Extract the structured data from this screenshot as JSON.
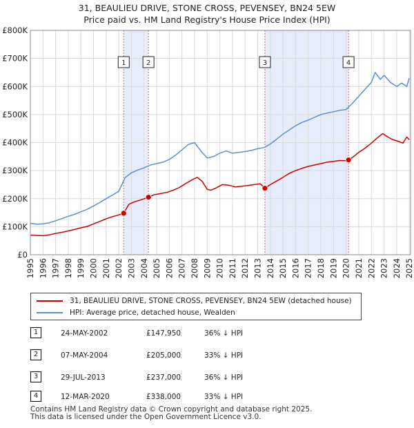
{
  "chart_data": {
    "type": "line",
    "title": "31, BEAULIEU DRIVE, STONE CROSS, PEVENSEY, BN24 5EW",
    "subtitle": "Price paid vs. HM Land Registry's House Price Index (HPI)",
    "xlabel": "",
    "ylabel": "",
    "xlim": [
      1995,
      2025.1
    ],
    "ylim": [
      0,
      800000
    ],
    "x_ticks": [
      1995,
      1996,
      1997,
      1998,
      1999,
      2000,
      2001,
      2002,
      2003,
      2004,
      2005,
      2006,
      2007,
      2008,
      2009,
      2010,
      2011,
      2012,
      2013,
      2014,
      2015,
      2016,
      2017,
      2018,
      2019,
      2020,
      2021,
      2022,
      2023,
      2024,
      2025
    ],
    "y_ticks": [
      {
        "value": 0,
        "label": "£0"
      },
      {
        "value": 100000,
        "label": "£100K"
      },
      {
        "value": 200000,
        "label": "£200K"
      },
      {
        "value": 300000,
        "label": "£300K"
      },
      {
        "value": 400000,
        "label": "£400K"
      },
      {
        "value": 500000,
        "label": "£500K"
      },
      {
        "value": 600000,
        "label": "£600K"
      },
      {
        "value": 700000,
        "label": "£700K"
      },
      {
        "value": 800000,
        "label": "£800K"
      }
    ],
    "grid": true,
    "shaded_periods": [
      [
        2002.39,
        2004.35
      ],
      [
        2013.57,
        2020.19
      ]
    ],
    "series": [
      {
        "name": "31, BEAULIEU DRIVE, STONE CROSS, PEVENSEY, BN24 5EW (detached house)",
        "color": "#cc0000",
        "x": [
          1995,
          1995.5,
          1996,
          1996.5,
          1997,
          1997.5,
          1998,
          1998.5,
          1999,
          1999.5,
          2000,
          2000.5,
          2001,
          2001.5,
          2002,
          2002.39,
          2002.39,
          2002.8,
          2003.2,
          2003.7,
          2004.1,
          2004.35,
          2004.35,
          2004.8,
          2005.3,
          2005.8,
          2006.3,
          2006.8,
          2007.3,
          2007.8,
          2008.2,
          2008.6,
          2009.0,
          2009.3,
          2009.7,
          2010.2,
          2010.7,
          2011.2,
          2011.7,
          2012.2,
          2012.7,
          2013.2,
          2013.57,
          2013.57,
          2014.0,
          2014.5,
          2015.0,
          2015.5,
          2016.0,
          2016.5,
          2017.0,
          2017.5,
          2018.0,
          2018.5,
          2019.0,
          2019.5,
          2020.0,
          2020.19,
          2020.19,
          2020.6,
          2021.0,
          2021.5,
          2022.0,
          2022.5,
          2022.9,
          2023.3,
          2023.7,
          2024.1,
          2024.5,
          2024.8,
          2025.0
        ],
        "y": [
          70000,
          69000,
          68000,
          71000,
          76000,
          80000,
          85000,
          90000,
          96000,
          101000,
          110000,
          119000,
          128000,
          136000,
          142000,
          147950,
          147950,
          180000,
          188000,
          195000,
          201000,
          205000,
          205000,
          214000,
          218000,
          222000,
          230000,
          240000,
          254000,
          267000,
          276000,
          262000,
          233000,
          230000,
          238000,
          250000,
          248000,
          242000,
          244000,
          247000,
          250000,
          253000,
          237000,
          237000,
          250000,
          263000,
          276000,
          290000,
          300000,
          308000,
          315000,
          320000,
          325000,
          330000,
          333000,
          336000,
          335000,
          338000,
          338000,
          350000,
          365000,
          380000,
          398000,
          418000,
          432000,
          420000,
          410000,
          405000,
          398000,
          420000,
          410000
        ]
      },
      {
        "name": "HPI: Average price, detached house, Wealden",
        "color": "#5b8fd1",
        "x": [
          1995,
          1995.5,
          1996,
          1996.5,
          1997,
          1997.5,
          1998,
          1998.5,
          1999,
          1999.5,
          2000,
          2000.5,
          2001,
          2001.5,
          2002,
          2002.5,
          2003,
          2003.5,
          2004,
          2004.5,
          2005,
          2005.5,
          2006,
          2006.5,
          2007,
          2007.5,
          2008,
          2008.5,
          2009,
          2009.5,
          2010,
          2010.5,
          2011,
          2011.5,
          2012,
          2012.5,
          2013,
          2013.5,
          2014,
          2014.5,
          2015,
          2015.5,
          2016,
          2016.5,
          2017,
          2017.5,
          2018,
          2018.5,
          2019,
          2019.5,
          2020,
          2020.5,
          2021,
          2021.5,
          2022,
          2022.3,
          2022.7,
          2023,
          2023.5,
          2024,
          2024.4,
          2024.8,
          2025.0
        ],
        "y": [
          112000,
          109000,
          110000,
          114000,
          121000,
          129000,
          137000,
          144000,
          153000,
          162000,
          174000,
          186000,
          200000,
          213000,
          226000,
          275000,
          292000,
          302000,
          310000,
          320000,
          325000,
          330000,
          340000,
          355000,
          374000,
          393000,
          400000,
          370000,
          345000,
          350000,
          362000,
          370000,
          362000,
          365000,
          368000,
          372000,
          378000,
          382000,
          395000,
          412000,
          430000,
          445000,
          460000,
          472000,
          480000,
          490000,
          500000,
          505000,
          510000,
          515000,
          518000,
          540000,
          565000,
          590000,
          615000,
          650000,
          625000,
          640000,
          615000,
          600000,
          612000,
          600000,
          630000
        ]
      }
    ],
    "markers": [
      {
        "id": "1",
        "x": 2002.39,
        "y": 147950
      },
      {
        "id": "2",
        "x": 2004.35,
        "y": 205000
      },
      {
        "id": "3",
        "x": 2013.57,
        "y": 237000
      },
      {
        "id": "4",
        "x": 2020.19,
        "y": 338000
      }
    ]
  },
  "legend": [
    {
      "label": "31, BEAULIEU DRIVE, STONE CROSS, PEVENSEY, BN24 5EW (detached house)",
      "color": "#cc0000"
    },
    {
      "label": "HPI: Average price, detached house, Wealden",
      "color": "#5b8fd1"
    }
  ],
  "transactions": [
    {
      "id": "1",
      "date": "24-MAY-2002",
      "price": "£147,950",
      "hpi": "36% ↓ HPI"
    },
    {
      "id": "2",
      "date": "07-MAY-2004",
      "price": "£205,000",
      "hpi": "33% ↓ HPI"
    },
    {
      "id": "3",
      "date": "29-JUL-2013",
      "price": "£237,000",
      "hpi": "36% ↓ HPI"
    },
    {
      "id": "4",
      "date": "12-MAR-2020",
      "price": "£338,000",
      "hpi": "33% ↓ HPI"
    }
  ],
  "footer": {
    "line1": "Contains HM Land Registry data © Crown copyright and database right 2025.",
    "line2": "This data is licensed under the Open Government Licence v3.0."
  }
}
